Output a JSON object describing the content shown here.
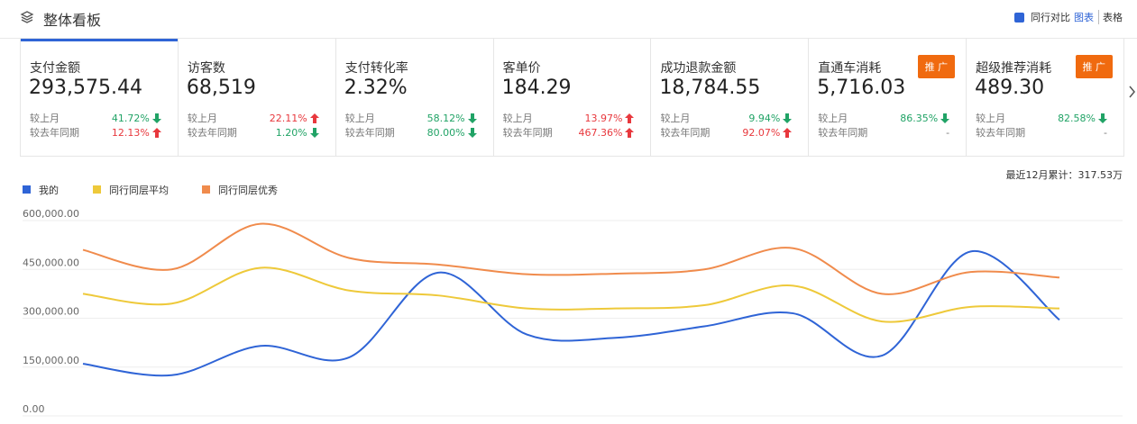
{
  "header": {
    "title": "整体看板",
    "compare": "同行对比",
    "chart_view": "图表",
    "table_view": "表格"
  },
  "cards": [
    {
      "label": "支付金额",
      "value": "293,575.44",
      "rows": [
        {
          "label": "较上月",
          "value": "41.72%",
          "trend": "down"
        },
        {
          "label": "较去年同期",
          "value": "12.13%",
          "trend": "up"
        }
      ]
    },
    {
      "label": "访客数",
      "value": "68,519",
      "rows": [
        {
          "label": "较上月",
          "value": "22.11%",
          "trend": "up"
        },
        {
          "label": "较去年同期",
          "value": "1.20%",
          "trend": "down"
        }
      ]
    },
    {
      "label": "支付转化率",
      "value": "2.32%",
      "rows": [
        {
          "label": "较上月",
          "value": "58.12%",
          "trend": "down"
        },
        {
          "label": "较去年同期",
          "value": "80.00%",
          "trend": "down"
        }
      ]
    },
    {
      "label": "客单价",
      "value": "184.29",
      "rows": [
        {
          "label": "较上月",
          "value": "13.97%",
          "trend": "up"
        },
        {
          "label": "较去年同期",
          "value": "467.36%",
          "trend": "up"
        }
      ]
    },
    {
      "label": "成功退款金额",
      "value": "18,784.55",
      "rows": [
        {
          "label": "较上月",
          "value": "9.94%",
          "trend": "down"
        },
        {
          "label": "较去年同期",
          "value": "92.07%",
          "trend": "up"
        }
      ]
    },
    {
      "label": "直通车消耗",
      "value": "5,716.03",
      "badge": "推 广",
      "rows": [
        {
          "label": "较上月",
          "value": "86.35%",
          "trend": "down"
        },
        {
          "label": "较去年同期",
          "value": "-"
        }
      ]
    },
    {
      "label": "超级推荐消耗",
      "value": "489.30",
      "badge": "推 广",
      "rows": [
        {
          "label": "较上月",
          "value": "82.58%",
          "trend": "down"
        },
        {
          "label": "较去年同期",
          "value": "-"
        }
      ]
    }
  ],
  "chart_data": {
    "type": "line",
    "summary": "最近12月累计：317.53万",
    "categories": [
      null,
      null,
      null,
      null,
      null,
      null,
      null,
      null,
      null,
      null,
      null,
      null
    ],
    "series": [
      {
        "name": "我的",
        "color": "#2f64d6",
        "values": [
          160000,
          125000,
          215000,
          180000,
          440000,
          250000,
          240000,
          275000,
          315000,
          185000,
          505000,
          295000
        ]
      },
      {
        "name": "同行同层平均",
        "color": "#eec93a",
        "values": [
          375000,
          345000,
          455000,
          385000,
          370000,
          330000,
          330000,
          340000,
          400000,
          290000,
          335000,
          330000
        ]
      },
      {
        "name": "同行同层优秀",
        "color": "#f08b4c",
        "values": [
          510000,
          450000,
          590000,
          485000,
          465000,
          435000,
          437000,
          450000,
          515000,
          375000,
          442000,
          425000
        ]
      }
    ],
    "ylim": [
      0,
      600000
    ],
    "yticks": [
      {
        "value": 0,
        "label": "0.00"
      },
      {
        "value": 150000,
        "label": "150,000.00"
      },
      {
        "value": 300000,
        "label": "300,000.00"
      },
      {
        "value": 450000,
        "label": "450,000.00"
      },
      {
        "value": 600000,
        "label": "600,000.00"
      }
    ],
    "grid": true
  }
}
